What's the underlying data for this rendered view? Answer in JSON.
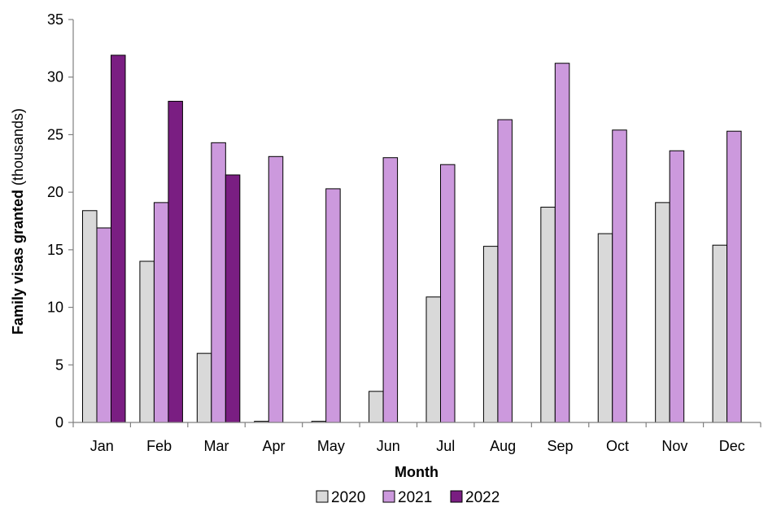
{
  "chart_data": {
    "type": "bar",
    "categories": [
      "Jan",
      "Feb",
      "Mar",
      "Apr",
      "May",
      "Jun",
      "Jul",
      "Aug",
      "Sep",
      "Oct",
      "Nov",
      "Dec"
    ],
    "series": [
      {
        "name": "2020",
        "color": "#d9d9d9",
        "values": [
          18.4,
          14.0,
          6.0,
          0.1,
          0.1,
          2.7,
          10.9,
          15.3,
          18.7,
          16.4,
          19.1,
          15.4
        ]
      },
      {
        "name": "2021",
        "color": "#cc99dd",
        "values": [
          16.9,
          19.1,
          24.3,
          23.1,
          20.3,
          23.0,
          22.4,
          26.3,
          31.2,
          25.4,
          23.6,
          25.3
        ]
      },
      {
        "name": "2022",
        "color": "#7a1e82",
        "values": [
          31.9,
          27.9,
          21.5,
          null,
          null,
          null,
          null,
          null,
          null,
          null,
          null,
          null
        ]
      }
    ],
    "xlabel": "Month",
    "ylabel_bold": "Family visas granted",
    "ylabel_rest": " (thousands)",
    "ylim": [
      0,
      35
    ],
    "yticks": [
      0,
      5,
      10,
      15,
      20,
      25,
      30,
      35
    ],
    "grid": false,
    "legend_position": "bottom"
  }
}
